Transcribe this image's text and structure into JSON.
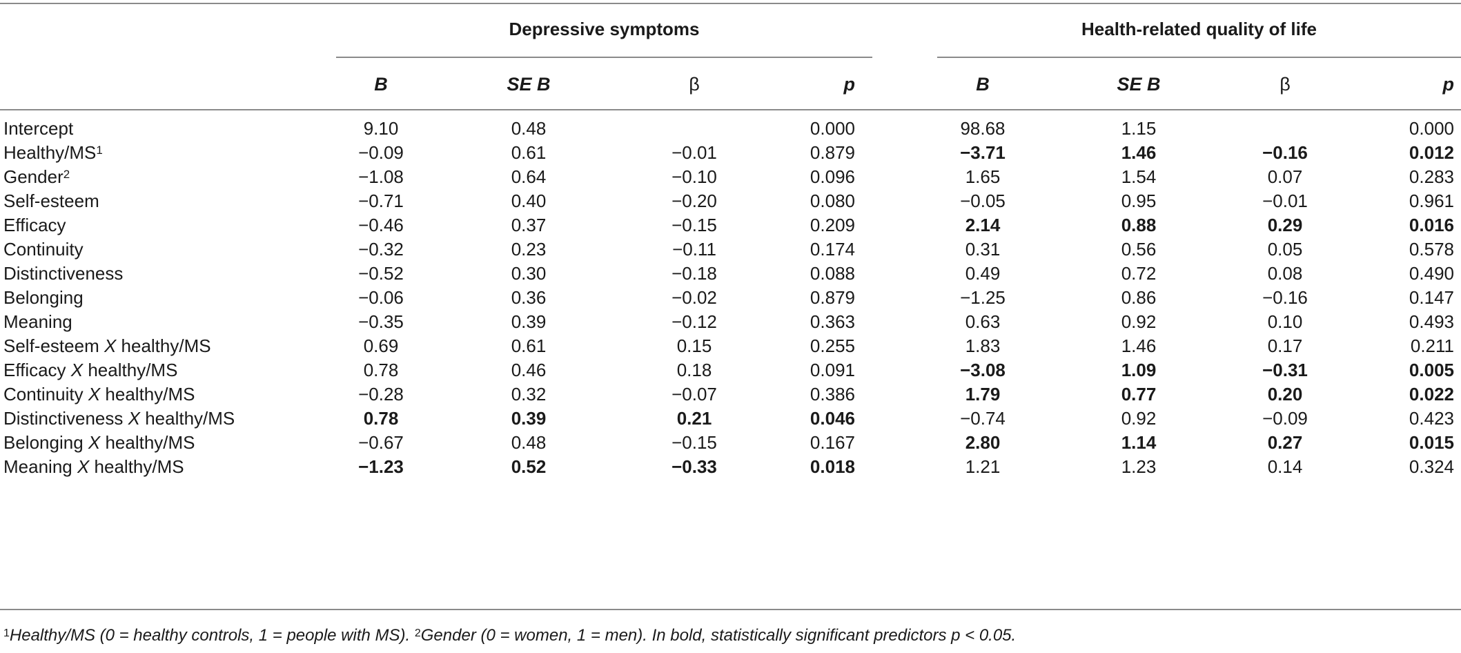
{
  "groups": {
    "depressive": "Depressive symptoms",
    "hrqol": "Health-related quality of life"
  },
  "columns": [
    "B",
    "SE B",
    "β",
    "p",
    "B",
    "SE B",
    "β",
    "p"
  ],
  "rows": [
    {
      "label": "Intercept",
      "sup": "",
      "interaction": "",
      "cells": [
        "9.10",
        "0.48",
        "",
        "0.000",
        "98.68",
        "1.15",
        "",
        "0.000"
      ],
      "bold": [
        false,
        false,
        false,
        false,
        false,
        false,
        false,
        false
      ]
    },
    {
      "label": "Healthy/MS",
      "sup": "1",
      "interaction": "",
      "cells": [
        "−0.09",
        "0.61",
        "−0.01",
        "0.879",
        "−3.71",
        "1.46",
        "−0.16",
        "0.012"
      ],
      "bold": [
        false,
        false,
        false,
        false,
        true,
        true,
        true,
        true
      ]
    },
    {
      "label": "Gender",
      "sup": "2",
      "interaction": "",
      "cells": [
        "−1.08",
        "0.64",
        "−0.10",
        "0.096",
        "1.65",
        "1.54",
        "0.07",
        "0.283"
      ],
      "bold": [
        false,
        false,
        false,
        false,
        false,
        false,
        false,
        false
      ]
    },
    {
      "label": "Self-esteem",
      "sup": "",
      "interaction": "",
      "cells": [
        "−0.71",
        "0.40",
        "−0.20",
        "0.080",
        "−0.05",
        "0.95",
        "−0.01",
        "0.961"
      ],
      "bold": [
        false,
        false,
        false,
        false,
        false,
        false,
        false,
        false
      ]
    },
    {
      "label": "Efficacy",
      "sup": "",
      "interaction": "",
      "cells": [
        "−0.46",
        "0.37",
        "−0.15",
        "0.209",
        "2.14",
        "0.88",
        "0.29",
        "0.016"
      ],
      "bold": [
        false,
        false,
        false,
        false,
        true,
        true,
        true,
        true
      ]
    },
    {
      "label": "Continuity",
      "sup": "",
      "interaction": "",
      "cells": [
        "−0.32",
        "0.23",
        "−0.11",
        "0.174",
        "0.31",
        "0.56",
        "0.05",
        "0.578"
      ],
      "bold": [
        false,
        false,
        false,
        false,
        false,
        false,
        false,
        false
      ]
    },
    {
      "label": "Distinctiveness",
      "sup": "",
      "interaction": "",
      "cells": [
        "−0.52",
        "0.30",
        "−0.18",
        "0.088",
        "0.49",
        "0.72",
        "0.08",
        "0.490"
      ],
      "bold": [
        false,
        false,
        false,
        false,
        false,
        false,
        false,
        false
      ]
    },
    {
      "label": "Belonging",
      "sup": "",
      "interaction": "",
      "cells": [
        "−0.06",
        "0.36",
        "−0.02",
        "0.879",
        "−1.25",
        "0.86",
        "−0.16",
        "0.147"
      ],
      "bold": [
        false,
        false,
        false,
        false,
        false,
        false,
        false,
        false
      ]
    },
    {
      "label": "Meaning",
      "sup": "",
      "interaction": "",
      "cells": [
        "−0.35",
        "0.39",
        "−0.12",
        "0.363",
        "0.63",
        "0.92",
        "0.10",
        "0.493"
      ],
      "bold": [
        false,
        false,
        false,
        false,
        false,
        false,
        false,
        false
      ]
    },
    {
      "label": "Self-esteem ",
      "sup": "",
      "interaction": " healthy/MS",
      "cells": [
        "0.69",
        "0.61",
        "0.15",
        "0.255",
        "1.83",
        "1.46",
        "0.17",
        "0.211"
      ],
      "bold": [
        false,
        false,
        false,
        false,
        false,
        false,
        false,
        false
      ]
    },
    {
      "label": "Efficacy ",
      "sup": "",
      "interaction": " healthy/MS",
      "cells": [
        "0.78",
        "0.46",
        "0.18",
        "0.091",
        "−3.08",
        "1.09",
        "−0.31",
        "0.005"
      ],
      "bold": [
        false,
        false,
        false,
        false,
        true,
        true,
        true,
        true
      ]
    },
    {
      "label": "Continuity ",
      "sup": "",
      "interaction": " healthy/MS",
      "cells": [
        "−0.28",
        "0.32",
        "−0.07",
        "0.386",
        "1.79",
        "0.77",
        "0.20",
        "0.022"
      ],
      "bold": [
        false,
        false,
        false,
        false,
        true,
        true,
        true,
        true
      ]
    },
    {
      "label": "Distinctiveness ",
      "sup": "",
      "interaction": " healthy/MS",
      "cells": [
        "0.78",
        "0.39",
        "0.21",
        "0.046",
        "−0.74",
        "0.92",
        "−0.09",
        "0.423"
      ],
      "bold": [
        true,
        true,
        true,
        true,
        false,
        false,
        false,
        false
      ]
    },
    {
      "label": "Belonging ",
      "sup": "",
      "interaction": " healthy/MS",
      "cells": [
        "−0.67",
        "0.48",
        "−0.15",
        "0.167",
        "2.80",
        "1.14",
        "0.27",
        "0.015"
      ],
      "bold": [
        false,
        false,
        false,
        false,
        true,
        true,
        true,
        true
      ]
    },
    {
      "label": "Meaning ",
      "sup": "",
      "interaction": " healthy/MS",
      "cells": [
        "−1.23",
        "0.52",
        "−0.33",
        "0.018",
        "1.21",
        "1.23",
        "0.14",
        "0.324"
      ],
      "bold": [
        true,
        true,
        true,
        true,
        false,
        false,
        false,
        false
      ]
    }
  ],
  "interaction_symbol": "X",
  "footnote": {
    "sup1": "1",
    "text1": "Healthy/MS (0 = healthy controls, 1 = people with MS). ",
    "sup2": "2",
    "text2": "Gender (0 = women, 1 = men). In bold, statistically significant predictors p < 0.05."
  }
}
